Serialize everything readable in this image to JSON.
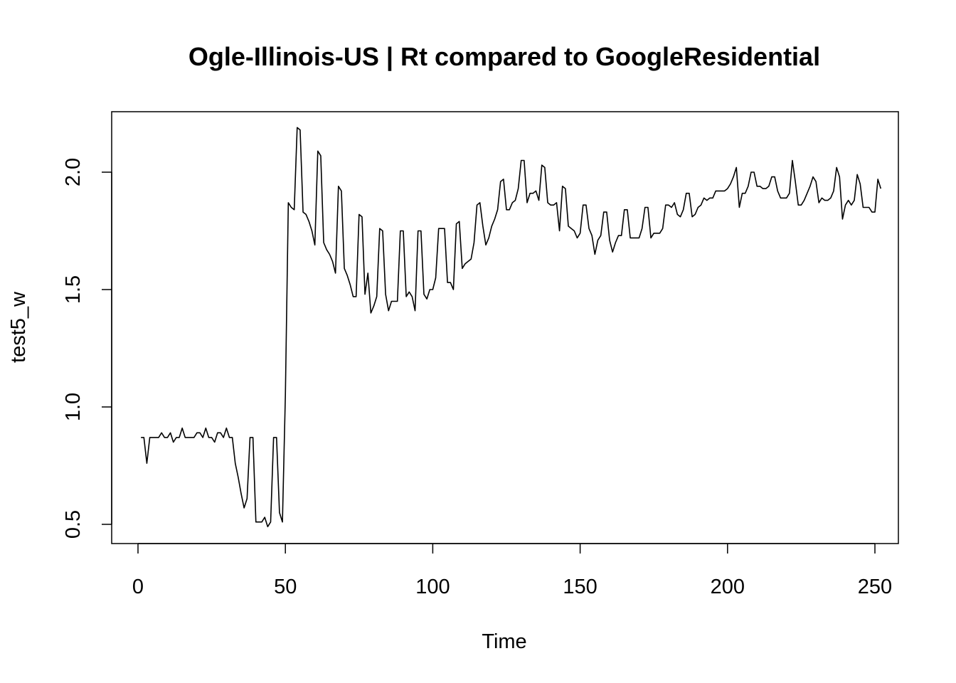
{
  "chart_data": {
    "type": "line",
    "title": "Ogle-Illinois-US | Rt compared to GoogleResidential",
    "xlabel": "Time",
    "ylabel": "test5_w",
    "xlim": [
      0,
      250
    ],
    "ylim": [
      0.5,
      2.2
    ],
    "x_ticks": [
      0,
      50,
      100,
      150,
      200,
      250
    ],
    "y_ticks": [
      0.5,
      1.0,
      1.5,
      2.0
    ],
    "x_tick_labels": [
      "0",
      "50",
      "100",
      "150",
      "200",
      "250"
    ],
    "y_tick_labels": [
      "0.5",
      "1.0",
      "1.5",
      "2.0"
    ],
    "grid": false,
    "line_color": "#000000",
    "series": [
      {
        "x_start": 1,
        "values": [
          0.87,
          0.87,
          0.76,
          0.87,
          0.87,
          0.87,
          0.87,
          0.89,
          0.87,
          0.87,
          0.89,
          0.85,
          0.87,
          0.87,
          0.91,
          0.87,
          0.87,
          0.87,
          0.87,
          0.89,
          0.89,
          0.87,
          0.91,
          0.87,
          0.87,
          0.85,
          0.89,
          0.89,
          0.87,
          0.91,
          0.87,
          0.87,
          0.76,
          0.7,
          0.63,
          0.57,
          0.61,
          0.87,
          0.87,
          0.51,
          0.51,
          0.51,
          0.53,
          0.49,
          0.51,
          0.87,
          0.87,
          0.55,
          0.51,
          1.05,
          1.87,
          1.85,
          1.84,
          2.19,
          2.18,
          1.83,
          1.82,
          1.79,
          1.75,
          1.69,
          2.09,
          2.07,
          1.7,
          1.67,
          1.65,
          1.62,
          1.57,
          1.94,
          1.92,
          1.59,
          1.56,
          1.52,
          1.47,
          1.47,
          1.82,
          1.81,
          1.48,
          1.57,
          1.4,
          1.43,
          1.47,
          1.76,
          1.75,
          1.48,
          1.41,
          1.45,
          1.45,
          1.45,
          1.75,
          1.75,
          1.47,
          1.49,
          1.47,
          1.41,
          1.75,
          1.75,
          1.48,
          1.46,
          1.5,
          1.5,
          1.55,
          1.76,
          1.76,
          1.76,
          1.53,
          1.53,
          1.5,
          1.78,
          1.79,
          1.59,
          1.61,
          1.62,
          1.63,
          1.7,
          1.86,
          1.87,
          1.77,
          1.69,
          1.72,
          1.77,
          1.8,
          1.84,
          1.96,
          1.97,
          1.84,
          1.84,
          1.87,
          1.88,
          1.93,
          2.05,
          2.05,
          1.87,
          1.91,
          1.91,
          1.92,
          1.88,
          2.03,
          2.02,
          1.87,
          1.86,
          1.86,
          1.87,
          1.75,
          1.94,
          1.93,
          1.77,
          1.76,
          1.75,
          1.72,
          1.74,
          1.86,
          1.86,
          1.76,
          1.73,
          1.65,
          1.71,
          1.73,
          1.83,
          1.83,
          1.71,
          1.66,
          1.7,
          1.73,
          1.73,
          1.84,
          1.84,
          1.72,
          1.72,
          1.72,
          1.72,
          1.76,
          1.85,
          1.85,
          1.72,
          1.74,
          1.74,
          1.74,
          1.76,
          1.86,
          1.86,
          1.85,
          1.87,
          1.82,
          1.81,
          1.84,
          1.91,
          1.91,
          1.81,
          1.82,
          1.85,
          1.86,
          1.89,
          1.88,
          1.89,
          1.89,
          1.92,
          1.92,
          1.92,
          1.92,
          1.93,
          1.95,
          1.98,
          2.02,
          1.85,
          1.91,
          1.91,
          1.94,
          2.0,
          2.0,
          1.94,
          1.94,
          1.93,
          1.93,
          1.94,
          1.98,
          1.98,
          1.92,
          1.89,
          1.89,
          1.89,
          1.91,
          2.05,
          1.96,
          1.86,
          1.86,
          1.88,
          1.91,
          1.94,
          1.98,
          1.96,
          1.87,
          1.89,
          1.88,
          1.88,
          1.89,
          1.92,
          2.02,
          1.98,
          1.8,
          1.86,
          1.88,
          1.86,
          1.88,
          1.99,
          1.95,
          1.85,
          1.85,
          1.85,
          1.83,
          1.83,
          1.97,
          1.93
        ]
      }
    ]
  }
}
